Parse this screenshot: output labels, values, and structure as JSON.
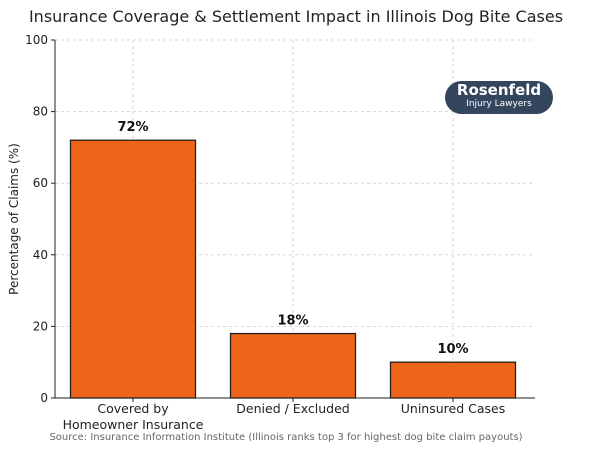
{
  "chart_data": {
    "type": "bar",
    "title": "Insurance Coverage & Settlement Impact in Illinois Dog Bite Cases",
    "xlabel": "",
    "ylabel": "Percentage of Claims (%)",
    "categories": [
      [
        "Covered by",
        "Homeowner Insurance"
      ],
      [
        "Denied / Excluded"
      ],
      [
        "Uninsured Cases"
      ]
    ],
    "values": [
      72,
      18,
      10
    ],
    "data_labels": [
      "72%",
      "18%",
      "10%"
    ],
    "ylim": [
      0,
      100
    ],
    "yticks": [
      0,
      20,
      40,
      60,
      80,
      100
    ],
    "grid": true,
    "bar_color": "#ec6519",
    "source": "Source: Insurance Information Institute (Illinois ranks top 3 for highest dog bite claim payouts)"
  },
  "logo": {
    "name": "Rosenfeld",
    "tagline": "Injury Lawyers",
    "color": "#34455e"
  }
}
